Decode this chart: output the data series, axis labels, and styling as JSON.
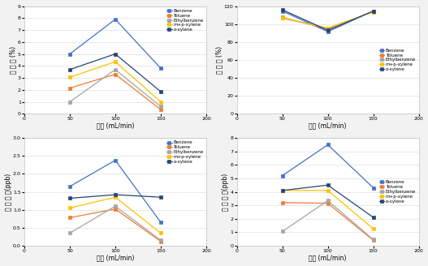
{
  "x": [
    50,
    100,
    150
  ],
  "xlim": [
    0,
    200
  ],
  "xticks": [
    0,
    50,
    100,
    150,
    200
  ],
  "xlabel": "유량 (mL/min)",
  "compounds": [
    "Benzene",
    "Toluene",
    "Ethylbenzene",
    "m+p-xylene",
    "o-xylene"
  ],
  "colors": [
    "#4472C4",
    "#ED7D31",
    "#A5A5A5",
    "#FFC000",
    "#264478"
  ],
  "precision": {
    "ylabel": "정 밀 도 (%)",
    "ylim": [
      0,
      9
    ],
    "yticks": [
      0,
      1,
      2,
      3,
      4,
      5,
      6,
      7,
      8,
      9
    ],
    "data": [
      [
        5.0,
        7.9,
        3.8
      ],
      [
        2.15,
        3.3,
        0.35
      ],
      [
        1.0,
        3.7,
        0.6
      ],
      [
        3.05,
        4.35,
        1.0
      ],
      [
        3.7,
        5.0,
        1.85
      ]
    ]
  },
  "accuracy": {
    "ylabel": "정 확 도 (%)",
    "ylim": [
      0,
      120
    ],
    "yticks": [
      0,
      20,
      40,
      60,
      80,
      100,
      120
    ],
    "data": [
      [
        114.5,
        91.5,
        114.5
      ],
      [
        107.5,
        94.5,
        114.0
      ],
      [
        106.5,
        95.5,
        113.5
      ],
      [
        107.0,
        95.5,
        113.5
      ],
      [
        116.0,
        93.0,
        114.5
      ]
    ]
  },
  "detection_limit": {
    "ylabel": "검 출 한 계(ppb)",
    "ylim": [
      0,
      3
    ],
    "yticks": [
      0,
      0.5,
      1.0,
      1.5,
      2.0,
      2.5,
      3.0
    ],
    "data": [
      [
        1.65,
        2.38,
        0.65
      ],
      [
        0.78,
        1.02,
        0.12
      ],
      [
        0.35,
        1.1,
        0.15
      ],
      [
        1.05,
        1.35,
        0.35
      ],
      [
        1.32,
        1.42,
        1.35
      ]
    ]
  },
  "quantification_limit": {
    "ylabel": "정 량 한 계(ppb)",
    "ylim": [
      0,
      8
    ],
    "yticks": [
      0,
      1,
      2,
      3,
      4,
      5,
      6,
      7,
      8
    ],
    "data": [
      [
        5.2,
        7.5,
        4.3
      ],
      [
        3.2,
        3.15,
        0.4
      ],
      [
        1.05,
        3.35,
        0.45
      ],
      [
        4.1,
        4.1,
        1.25
      ],
      [
        4.1,
        4.5,
        2.1
      ]
    ]
  },
  "bg_color": "#f2f2f2",
  "plot_bg": "#ffffff",
  "spine_color": "#c0c0c0",
  "grid_color": "#e0e0e0"
}
